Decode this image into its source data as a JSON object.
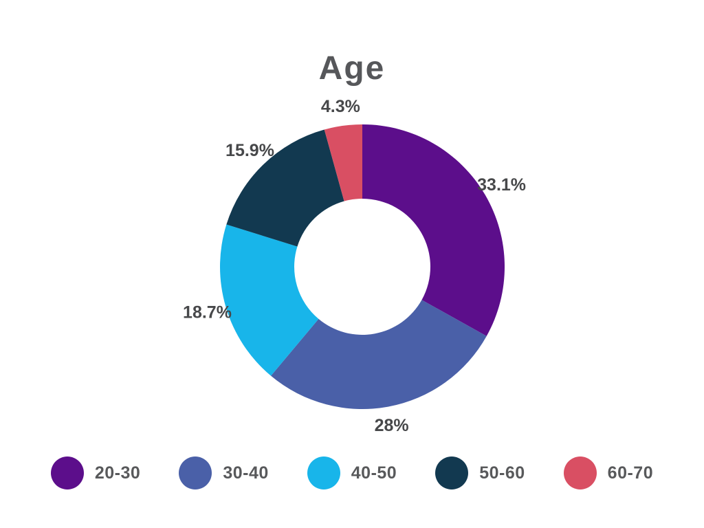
{
  "chart_data": {
    "type": "pie",
    "subtype": "donut",
    "title": "Age",
    "categories": [
      "20-30",
      "30-40",
      "40-50",
      "50-60",
      "60-70"
    ],
    "values": [
      33.1,
      28,
      18.7,
      15.9,
      4.3
    ],
    "value_labels": [
      "33.1%",
      "28%",
      "18.7%",
      "15.9%",
      "4.3%"
    ],
    "colors": [
      "#5c0e8b",
      "#4a60a8",
      "#18b5ea",
      "#123950",
      "#d94f63"
    ],
    "start_angle": "top",
    "direction": "clockwise",
    "hole_ratio": 0.48,
    "legend_position": "bottom",
    "background": "#ffffff",
    "title_color": "#56575a",
    "slice_label_color": "#47484a",
    "legend_text_color": "#58595b"
  }
}
